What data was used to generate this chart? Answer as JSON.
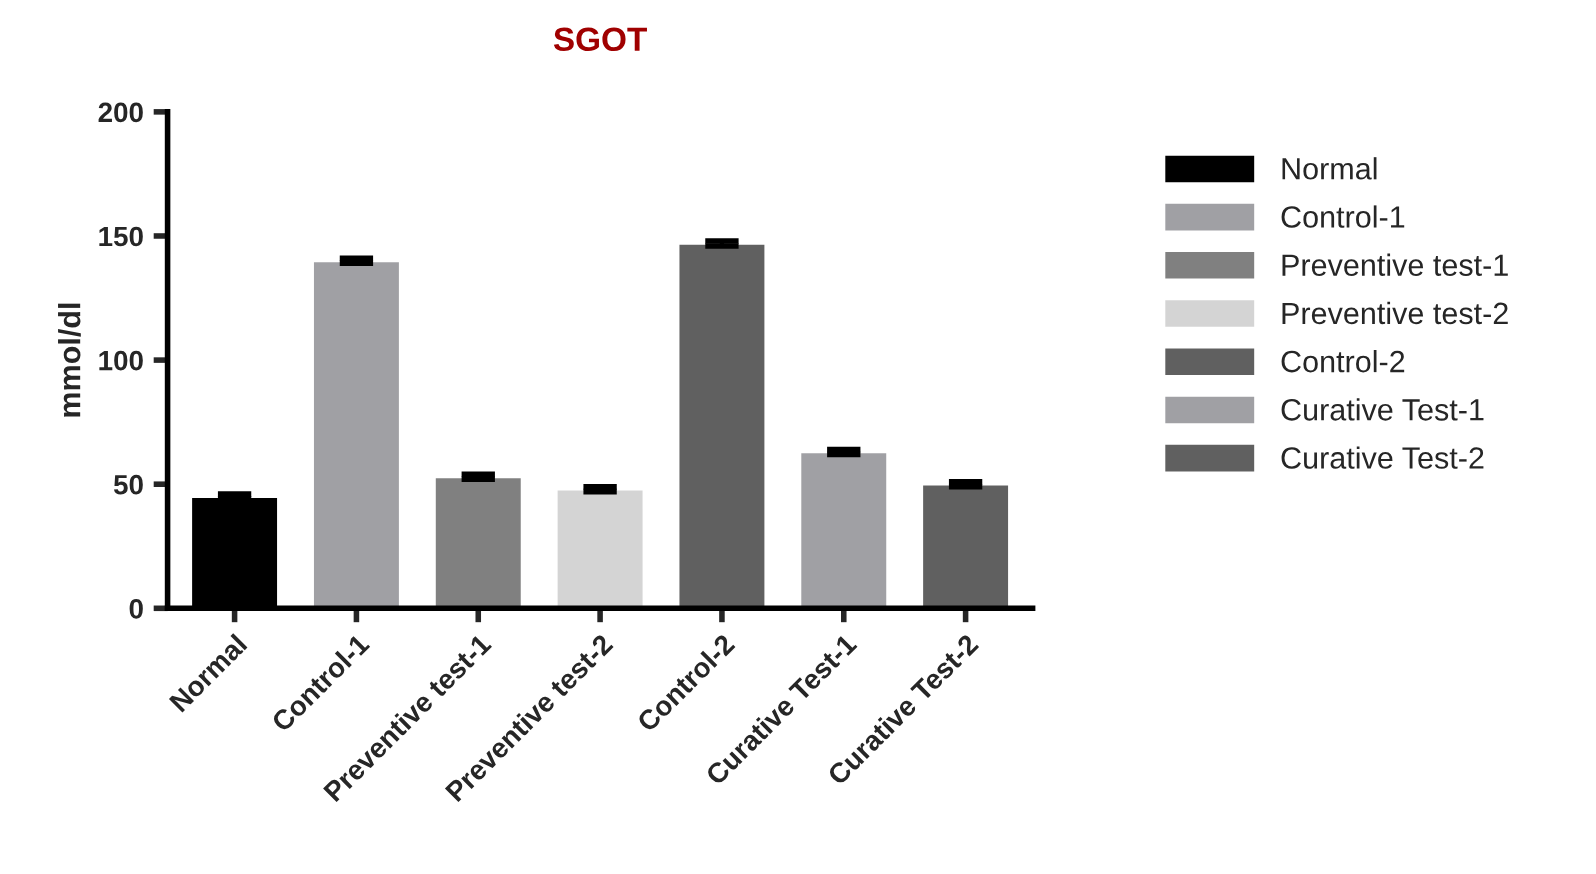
{
  "chart_data": {
    "type": "bar",
    "title": "SGOT",
    "ylabel": "mmol/dl",
    "categories": [
      "Normal",
      "Control-1",
      "Preventive test-1",
      "Preventive test-2",
      "Control-2",
      "Curative Test-1",
      "Curative Test-2"
    ],
    "series": [
      {
        "name": "Normal",
        "color": "#000000",
        "values": [
          45,
          null,
          null,
          null,
          null,
          null,
          null
        ],
        "errors": [
          1,
          null,
          null,
          null,
          null,
          null,
          null
        ]
      },
      {
        "name": "Control-1",
        "color": "#a0a0a4",
        "values": [
          null,
          140,
          null,
          null,
          null,
          null,
          null
        ],
        "errors": [
          null,
          1,
          null,
          null,
          null,
          null,
          null
        ]
      },
      {
        "name": "Preventive test-1",
        "color": "#808080",
        "values": [
          null,
          null,
          53,
          null,
          null,
          null,
          null
        ],
        "errors": [
          null,
          null,
          1,
          null,
          null,
          null,
          null
        ]
      },
      {
        "name": "Preventive test-2",
        "color": "#d4d4d4",
        "values": [
          null,
          null,
          null,
          48,
          null,
          null,
          null
        ],
        "errors": [
          null,
          null,
          null,
          1,
          null,
          null,
          null
        ]
      },
      {
        "name": "Control-2",
        "color": "#606060",
        "values": [
          null,
          null,
          null,
          null,
          147,
          null,
          null
        ],
        "errors": [
          null,
          null,
          null,
          null,
          1,
          null,
          null
        ]
      },
      {
        "name": "Curative Test-1",
        "color": "#a0a0a4",
        "values": [
          null,
          null,
          null,
          null,
          null,
          63,
          null
        ],
        "errors": [
          null,
          null,
          null,
          null,
          null,
          1,
          null
        ]
      },
      {
        "name": "Curative Test-2",
        "color": "#606060",
        "values": [
          null,
          null,
          null,
          null,
          null,
          null,
          50
        ],
        "errors": [
          null,
          null,
          null,
          null,
          null,
          null,
          1
        ]
      }
    ],
    "ylim": [
      0,
      200
    ],
    "yticks": [
      0,
      50,
      100,
      150,
      200
    ],
    "legend": "right"
  }
}
